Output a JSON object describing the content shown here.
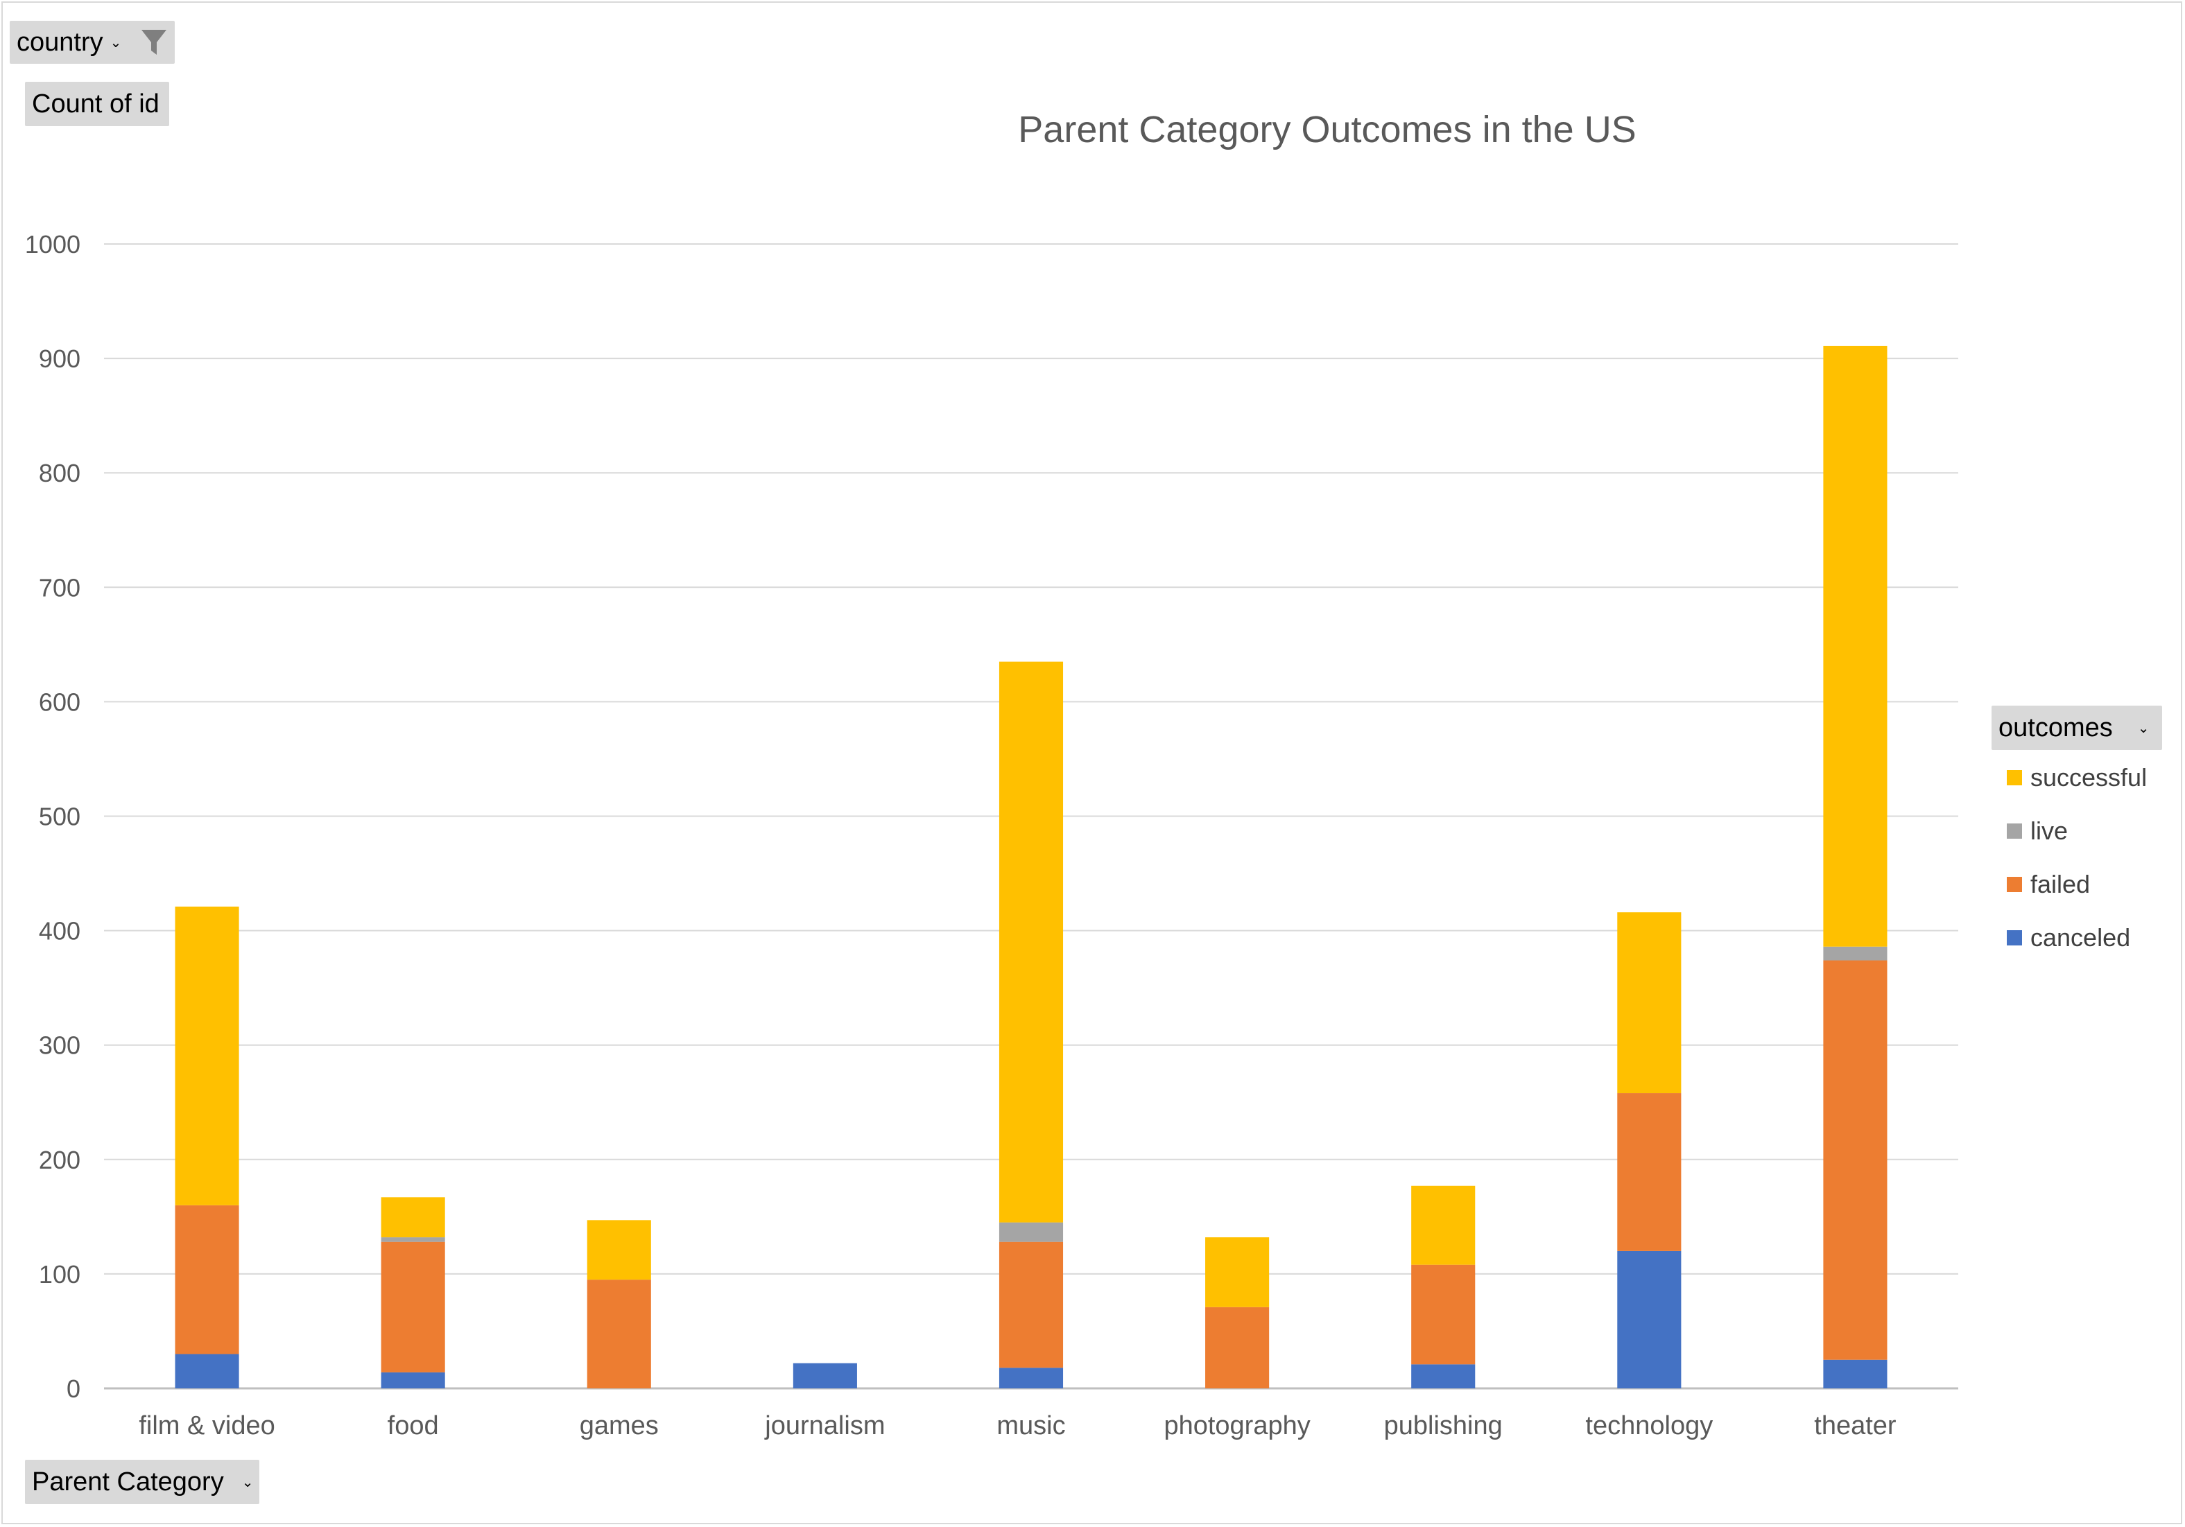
{
  "filters": {
    "country_label": "country",
    "values_label": "Count of id",
    "axis_field_label": "Parent Category",
    "legend_field_label": "outcomes"
  },
  "icons": {
    "filter": "filter-funnel-icon",
    "dropdown": "dropdown-arrow-icon"
  },
  "chart_data": {
    "type": "bar",
    "stacked": true,
    "title": "Parent Category Outcomes in the US",
    "xlabel": "",
    "ylabel": "",
    "ylim": [
      0,
      1000
    ],
    "yticks": [
      0,
      100,
      200,
      300,
      400,
      500,
      600,
      700,
      800,
      900,
      1000
    ],
    "grid": true,
    "legend_position": "right",
    "categories": [
      "film & video",
      "food",
      "games",
      "journalism",
      "music",
      "photography",
      "publishing",
      "technology",
      "theater"
    ],
    "series": [
      {
        "name": "canceled",
        "color": "#4472C4",
        "values": [
          30,
          14,
          0,
          22,
          18,
          0,
          21,
          120,
          25
        ]
      },
      {
        "name": "failed",
        "color": "#ED7D31",
        "values": [
          130,
          114,
          95,
          0,
          110,
          71,
          87,
          138,
          349
        ]
      },
      {
        "name": "live",
        "color": "#A5A5A5",
        "values": [
          0,
          4,
          0,
          0,
          17,
          0,
          0,
          0,
          12
        ]
      },
      {
        "name": "successful",
        "color": "#FFC000",
        "values": [
          261,
          35,
          52,
          0,
          490,
          61,
          69,
          158,
          525
        ]
      }
    ],
    "legend_order": [
      "successful",
      "live",
      "failed",
      "canceled"
    ]
  }
}
